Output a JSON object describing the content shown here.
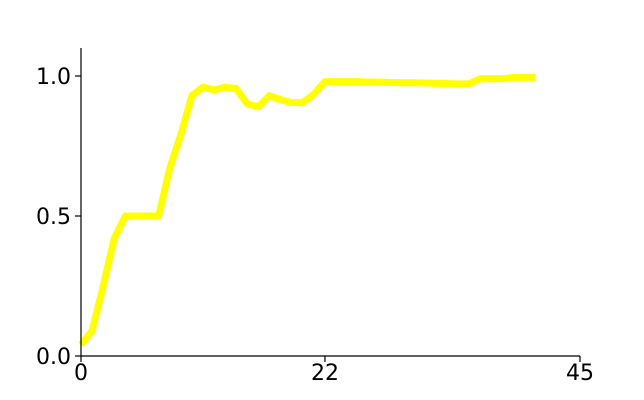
{
  "chart_data": {
    "type": "line",
    "title": "",
    "xlabel": "",
    "ylabel": "",
    "xlim": [
      0,
      45
    ],
    "ylim": [
      0,
      1.1
    ],
    "x_ticks": [
      {
        "value": 0,
        "label": "0"
      },
      {
        "value": 22,
        "label": "22"
      },
      {
        "value": 45,
        "label": "45"
      }
    ],
    "y_ticks": [
      {
        "value": 0.0,
        "label": "0.0"
      },
      {
        "value": 0.5,
        "label": "0.5"
      },
      {
        "value": 1.0,
        "label": "1.0"
      }
    ],
    "grid": false,
    "legend": "none",
    "series": [
      {
        "color": "#ffff00",
        "x": [
          0,
          1,
          2,
          3,
          4,
          5,
          6,
          7,
          8,
          9,
          10,
          11,
          12,
          13,
          14,
          15,
          16,
          17,
          18,
          19,
          20,
          21,
          22,
          23,
          24,
          25,
          26,
          27,
          28,
          29,
          30,
          31,
          32,
          33,
          34,
          35,
          36,
          37,
          38,
          39,
          40,
          41
        ],
        "y": [
          0.04,
          0.09,
          0.25,
          0.42,
          0.5,
          0.5,
          0.5,
          0.5,
          0.67,
          0.79,
          0.93,
          0.96,
          0.95,
          0.96,
          0.955,
          0.9,
          0.89,
          0.93,
          0.915,
          0.905,
          0.905,
          0.935,
          0.98,
          0.98,
          0.98,
          0.98,
          0.978,
          0.978,
          0.977,
          0.976,
          0.976,
          0.975,
          0.974,
          0.973,
          0.972,
          0.972,
          0.99,
          0.99,
          0.99,
          0.995,
          0.995,
          0.995
        ]
      }
    ]
  }
}
